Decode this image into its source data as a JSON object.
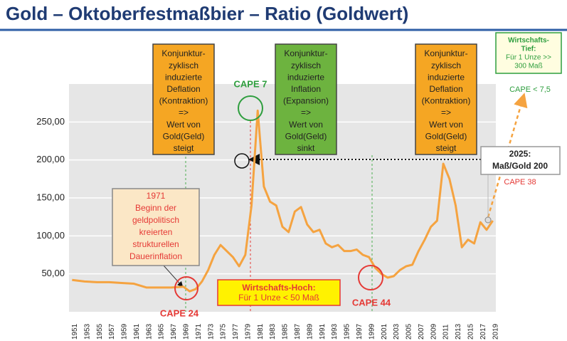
{
  "chart_data": {
    "type": "line",
    "title": "Gold – Oktoberfestmaßbier – Ratio (Goldwert)",
    "x": [
      1951,
      1953,
      1955,
      1957,
      1959,
      1961,
      1963,
      1965,
      1967,
      1969,
      1970,
      1971,
      1972,
      1973,
      1974,
      1975,
      1976,
      1977,
      1978,
      1979,
      1980,
      1981,
      1982,
      1983,
      1984,
      1985,
      1986,
      1987,
      1988,
      1989,
      1990,
      1991,
      1992,
      1993,
      1994,
      1995,
      1996,
      1997,
      1998,
      1999,
      2000,
      2001,
      2002,
      2003,
      2004,
      2005,
      2006,
      2007,
      2008,
      2009,
      2010,
      2011,
      2012,
      2013,
      2014,
      2015,
      2016,
      2017,
      2018,
      2019
    ],
    "series": [
      {
        "color": "#f5a340",
        "values": [
          42,
          40,
          39,
          39,
          38,
          37,
          32,
          32,
          32,
          33,
          27,
          30,
          40,
          55,
          75,
          88,
          80,
          72,
          60,
          75,
          140,
          265,
          165,
          145,
          140,
          112,
          105,
          132,
          138,
          115,
          105,
          108,
          90,
          85,
          88,
          80,
          80,
          82,
          75,
          72,
          58,
          50,
          45,
          47,
          55,
          60,
          62,
          80,
          95,
          112,
          120,
          195,
          175,
          140,
          85,
          95,
          90,
          118,
          108,
          120
        ]
      }
    ],
    "xlim": [
      1950.5,
      2019.5
    ],
    "ylim": [
      0,
      300
    ],
    "xticks": [
      1951,
      1953,
      1955,
      1957,
      1959,
      1961,
      1963,
      1965,
      1967,
      1969,
      1971,
      1973,
      1975,
      1977,
      1979,
      1981,
      1983,
      1985,
      1987,
      1989,
      1991,
      1993,
      1995,
      1997,
      1999,
      2001,
      2003,
      2005,
      2007,
      2009,
      2011,
      2013,
      2015,
      2017,
      2019
    ],
    "yticks": [
      {
        "value": 50,
        "label": "50,00"
      },
      {
        "value": 100,
        "label": "100,00"
      },
      {
        "value": 150,
        "label": "150,00"
      },
      {
        "value": 200,
        "label": "200,00"
      },
      {
        "value": 250,
        "label": "250,00"
      }
    ],
    "grid": true,
    "annotations": [
      {
        "lines": [
          "Konjunktur-",
          "zyklisch",
          "induzierte",
          "Deflation",
          "(Kontraktion)",
          "=>",
          "Wert von",
          "Gold(Geld)",
          "steigt"
        ]
      },
      {
        "lines": [
          "Konjunktur-",
          "zyklisch",
          "induzierte",
          "Inflation",
          "(Expansion)",
          "=>",
          "Wert von",
          "Gold(Geld)",
          "sinkt"
        ]
      },
      {
        "lines": [
          "Konjunktur-",
          "zyklisch",
          "induzierte",
          "Deflation",
          "(Kontraktion)",
          "=>",
          "Wert von",
          "Gold(Geld)",
          "steigt"
        ]
      },
      {
        "lines": [
          "1971",
          "Beginn der",
          "geldpolitisch",
          "kreierten",
          "strukturellen",
          "Dauerinflation"
        ]
      },
      {
        "lines": [
          "Wirtschafts-Hoch:",
          "Für 1 Unze  < 50 Maß"
        ]
      },
      {
        "lines": [
          "Wirtschafts-",
          "Tief:",
          "Für 1 Unze >>",
          "300 Maß"
        ]
      },
      {
        "lines": [
          "CAPE < 7,5"
        ]
      },
      {
        "lines": [
          "2025:",
          "Maß/Gold 200"
        ]
      },
      {
        "lines": [
          "CAPE 38"
        ]
      },
      {
        "lines": [
          "CAPE 7"
        ]
      },
      {
        "lines": [
          "CAPE 24"
        ]
      },
      {
        "lines": [
          "CAPE 44"
        ]
      }
    ]
  }
}
